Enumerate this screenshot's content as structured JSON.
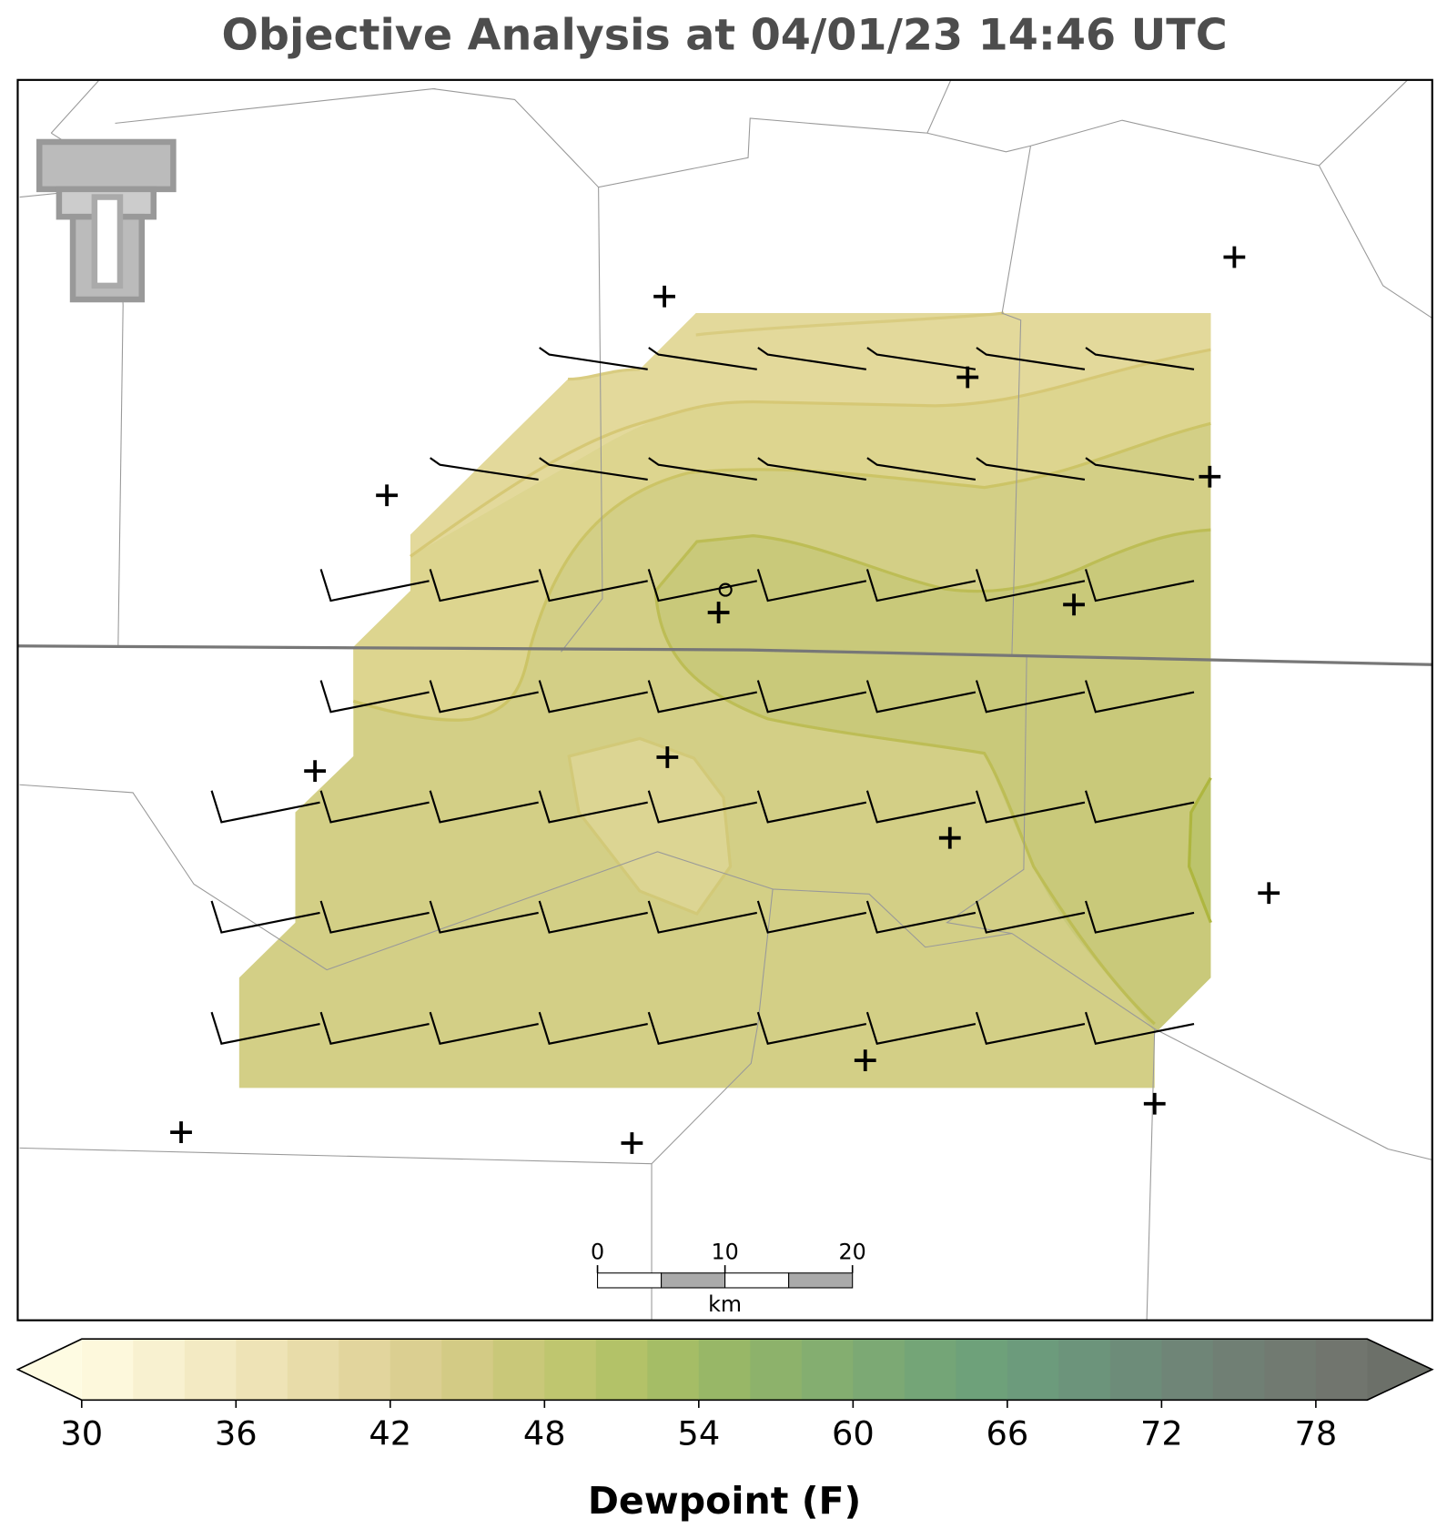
{
  "title": "Objective Analysis at 04/01/23 14:46 UTC",
  "colorbar": {
    "label": "Dewpoint (F)",
    "min": 30,
    "max": 80,
    "step": 2,
    "ticks": [
      30,
      36,
      42,
      48,
      54,
      60,
      66,
      72,
      78
    ],
    "colors": [
      "#fdf8dc",
      "#f8f1d0",
      "#f3eac3",
      "#eee3b6",
      "#e8dca9",
      "#e2d59d",
      "#dbcf91",
      "#d3cb85",
      "#c9c879",
      "#bfc66f",
      "#b3c268",
      "#a5bd66",
      "#98b767",
      "#8db26b",
      "#84ae70",
      "#7ca974",
      "#74a577",
      "#6ea17a",
      "#6c9b7c",
      "#6c947b",
      "#6d8c79",
      "#6f8577",
      "#707f74",
      "#717a71",
      "#71756e"
    ],
    "under_color": "#fefbe2",
    "over_color": "#6c7069"
  },
  "scale_bar": {
    "ticks": [
      0,
      10,
      20
    ],
    "unit": "km"
  }
}
